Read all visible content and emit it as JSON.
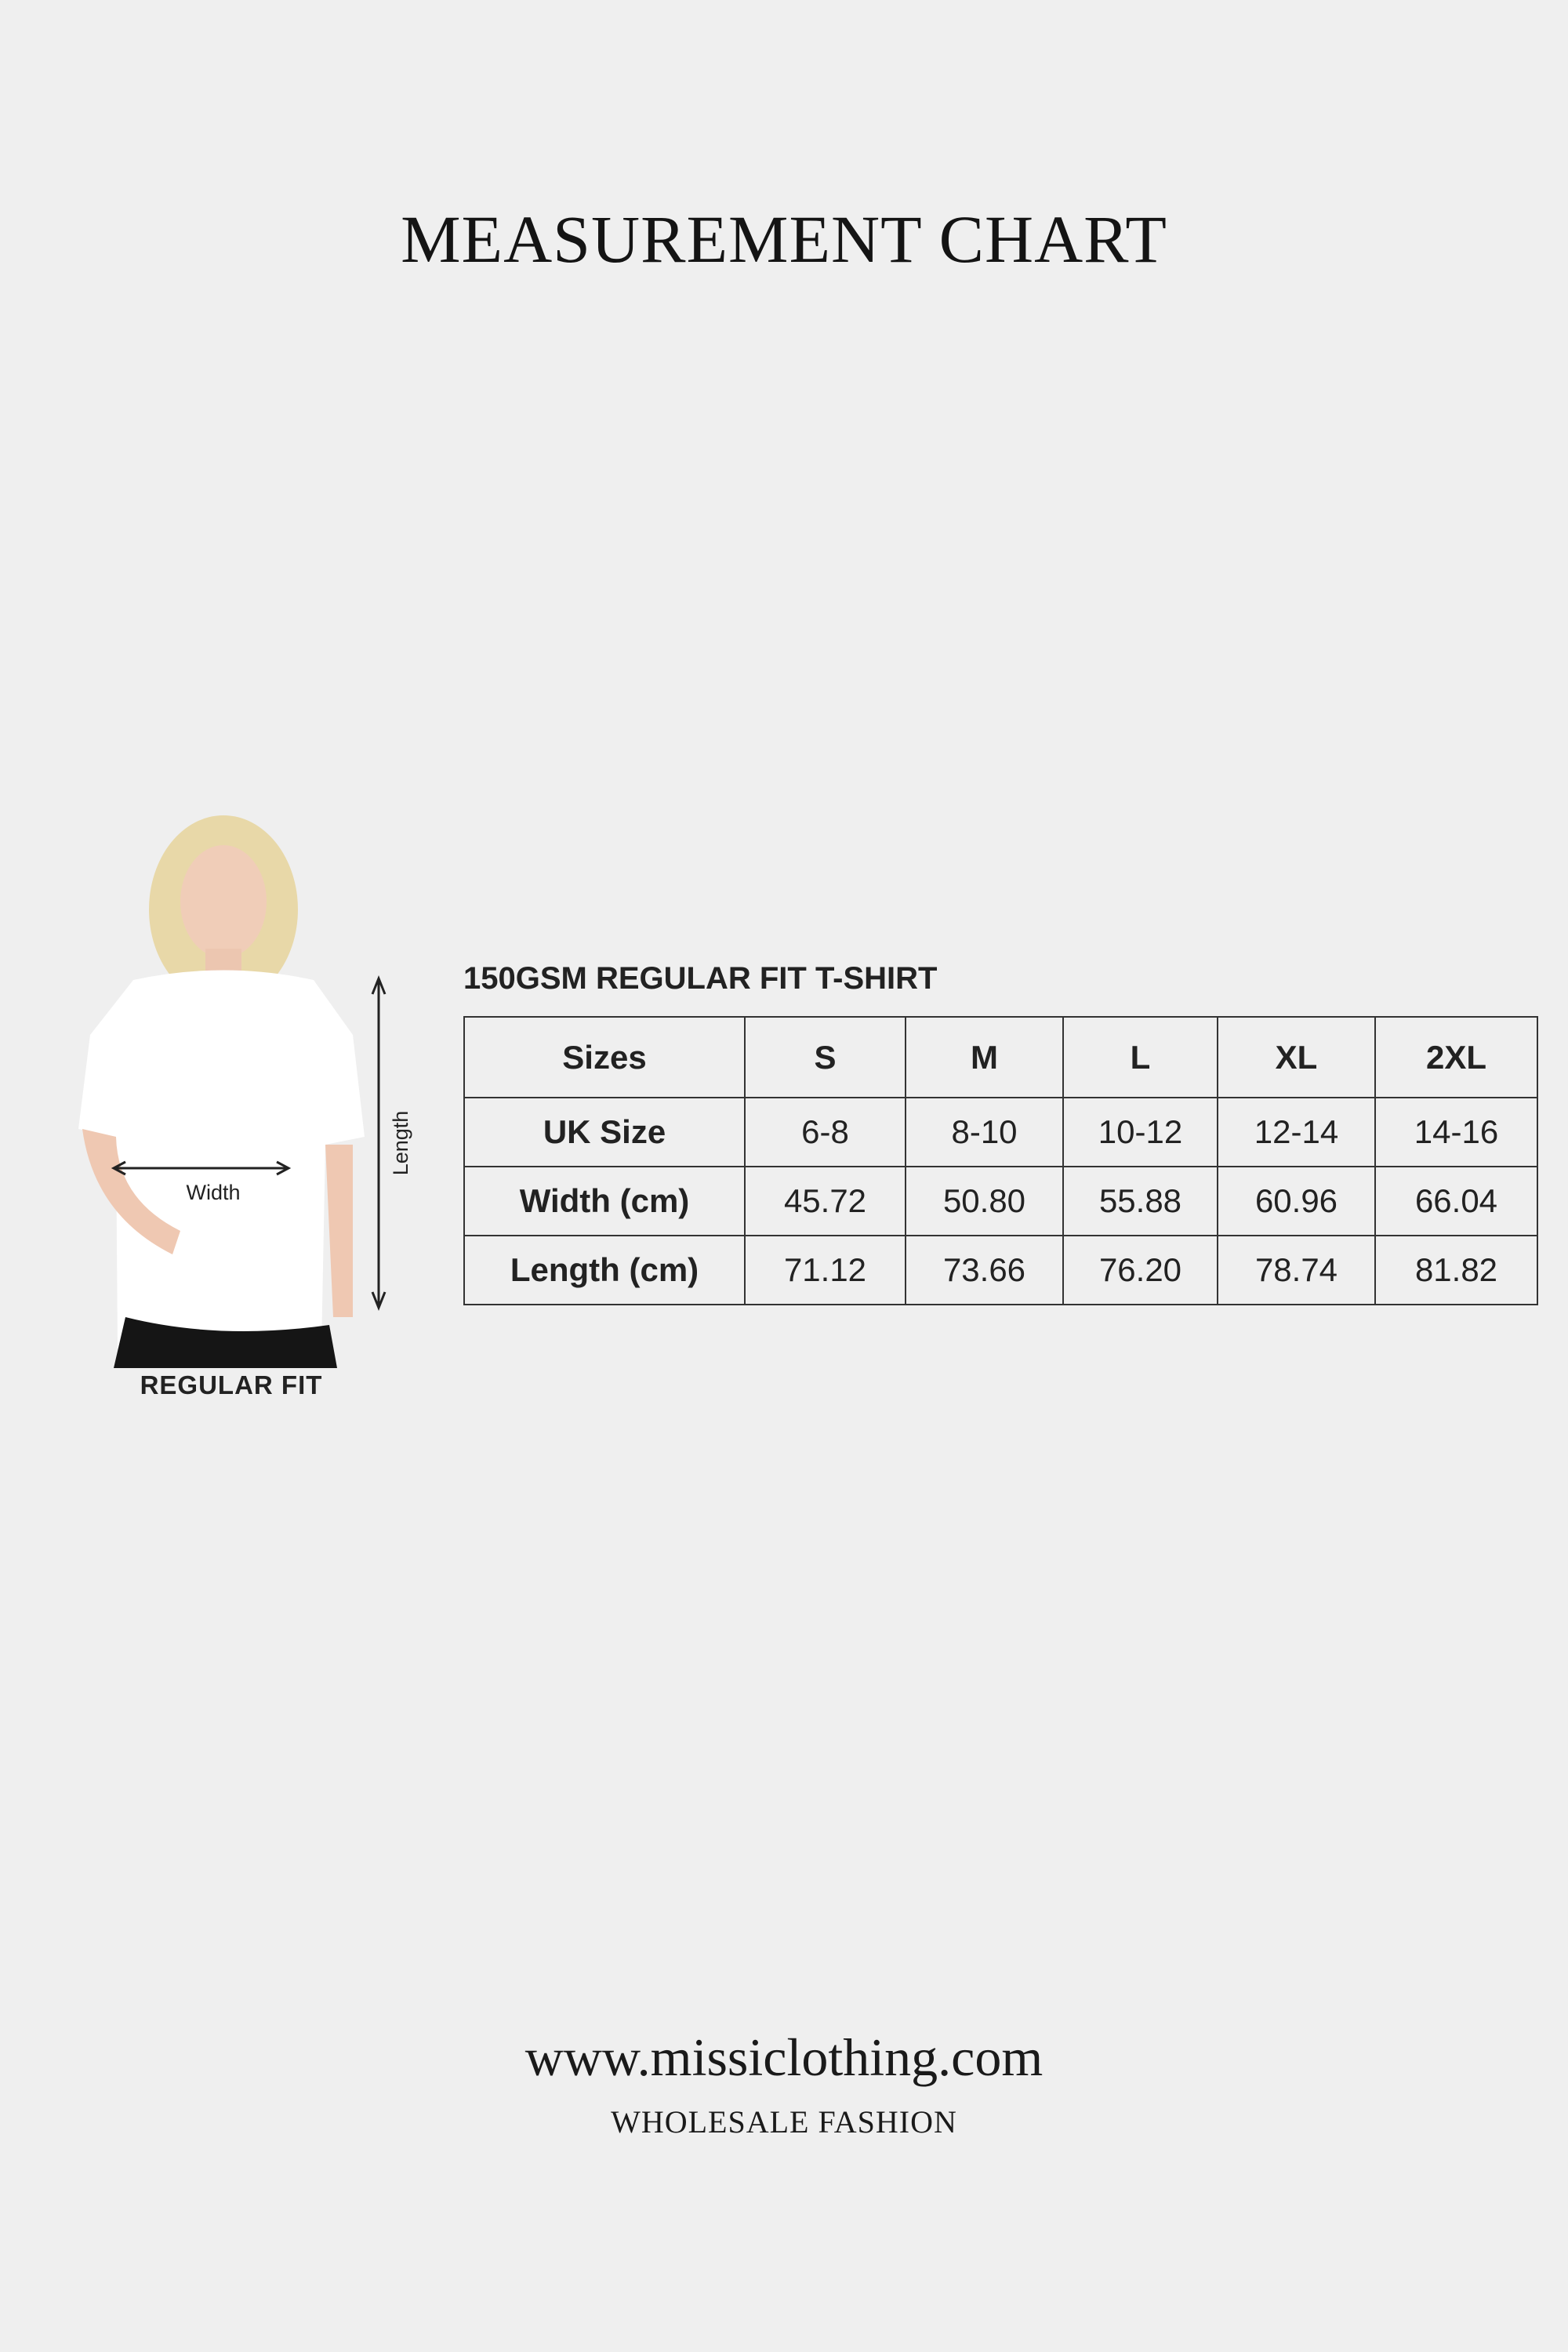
{
  "title": "MEASUREMENT CHART",
  "figure": {
    "width_label": "Width",
    "length_label": "Length",
    "fit_label": "REGULAR FIT"
  },
  "table": {
    "title": "150GSM REGULAR FIT T-SHIRT",
    "header": [
      "Sizes",
      "S",
      "M",
      "L",
      "XL",
      "2XL"
    ],
    "rows": [
      [
        "UK Size",
        "6-8",
        "8-10",
        "10-12",
        "12-14",
        "14-16"
      ],
      [
        "Width (cm)",
        "45.72",
        "50.80",
        "55.88",
        "60.96",
        "66.04"
      ],
      [
        "Length (cm)",
        "71.12",
        "73.66",
        "76.20",
        "78.74",
        "81.82"
      ]
    ]
  },
  "footer": {
    "url": "www.missiclothing.com",
    "tagline": "WHOLESALE FASHION"
  }
}
